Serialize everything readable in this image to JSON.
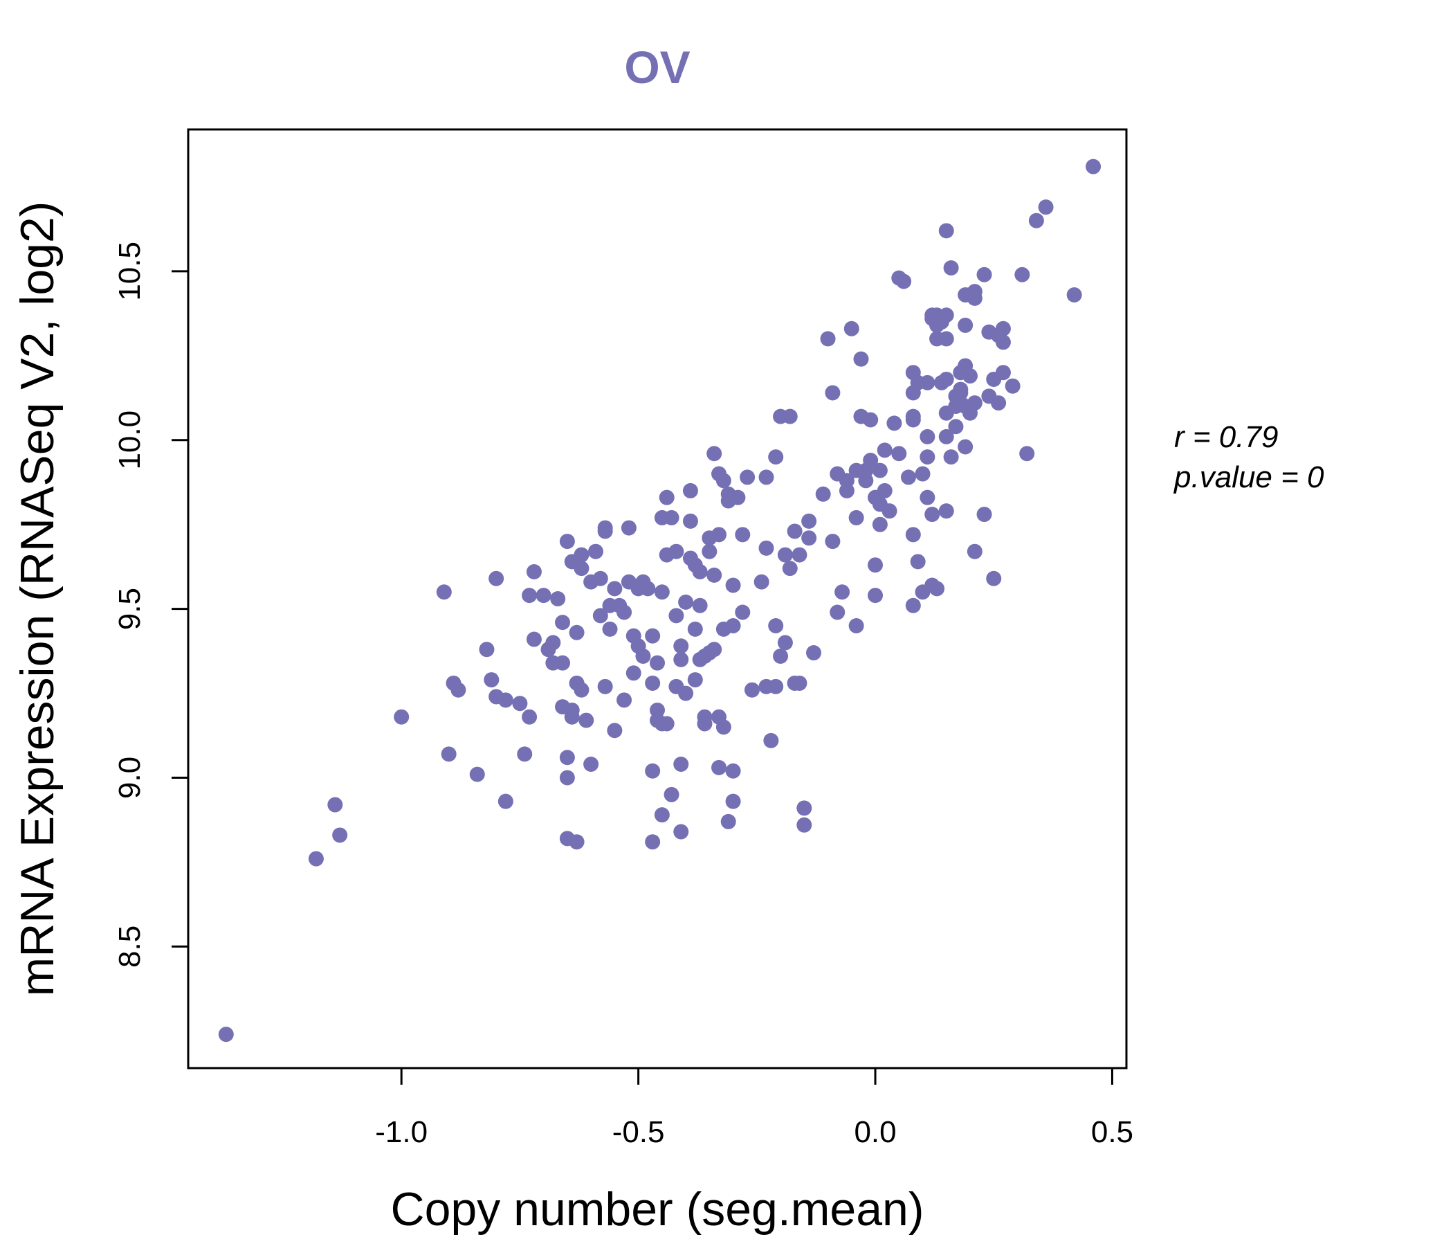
{
  "chart_data": {
    "type": "scatter",
    "title": "OV",
    "xlabel": "Copy number (seg.mean)",
    "ylabel": "mRNA Expression (RNASeq V2, log2)",
    "xlim": [
      -1.45,
      0.53
    ],
    "ylim": [
      8.14,
      10.92
    ],
    "xticks": [
      -1.0,
      -0.5,
      0.0,
      0.5
    ],
    "xtick_labels": [
      "-1.0",
      "-0.5",
      "0.0",
      "0.5"
    ],
    "yticks": [
      8.5,
      9.0,
      9.5,
      10.0,
      10.5
    ],
    "ytick_labels": [
      "8.5",
      "9.0",
      "9.5",
      "10.0",
      "10.5"
    ],
    "annotation": {
      "r_label": "r = 0.79",
      "p_label": "p.value = 0"
    },
    "point_color": "#7570b3",
    "points": [
      [
        -1.37,
        8.24
      ],
      [
        -1.18,
        8.76
      ],
      [
        -1.14,
        8.92
      ],
      [
        -1.13,
        8.83
      ],
      [
        -1.0,
        9.18
      ],
      [
        -0.91,
        9.55
      ],
      [
        -0.9,
        9.07
      ],
      [
        -0.89,
        9.28
      ],
      [
        -0.88,
        9.26
      ],
      [
        -0.84,
        9.01
      ],
      [
        -0.82,
        9.38
      ],
      [
        -0.81,
        9.29
      ],
      [
        -0.8,
        9.24
      ],
      [
        -0.8,
        9.59
      ],
      [
        -0.78,
        8.93
      ],
      [
        -0.78,
        9.23
      ],
      [
        -0.75,
        9.22
      ],
      [
        -0.74,
        9.07
      ],
      [
        -0.73,
        9.54
      ],
      [
        -0.73,
        9.18
      ],
      [
        -0.72,
        9.61
      ],
      [
        -0.72,
        9.41
      ],
      [
        -0.7,
        9.54
      ],
      [
        -0.69,
        9.38
      ],
      [
        -0.68,
        9.34
      ],
      [
        -0.68,
        9.4
      ],
      [
        -0.67,
        9.53
      ],
      [
        -0.66,
        9.46
      ],
      [
        -0.66,
        9.34
      ],
      [
        -0.66,
        9.21
      ],
      [
        -0.65,
        9.06
      ],
      [
        -0.65,
        8.82
      ],
      [
        -0.65,
        9.7
      ],
      [
        -0.65,
        9.0
      ],
      [
        -0.64,
        9.18
      ],
      [
        -0.64,
        9.64
      ],
      [
        -0.64,
        9.2
      ],
      [
        -0.63,
        9.43
      ],
      [
        -0.63,
        8.81
      ],
      [
        -0.63,
        9.28
      ],
      [
        -0.62,
        9.62
      ],
      [
        -0.62,
        9.66
      ],
      [
        -0.62,
        9.26
      ],
      [
        -0.61,
        9.17
      ],
      [
        -0.6,
        9.58
      ],
      [
        -0.6,
        9.04
      ],
      [
        -0.59,
        9.67
      ],
      [
        -0.58,
        9.59
      ],
      [
        -0.58,
        9.48
      ],
      [
        -0.57,
        9.27
      ],
      [
        -0.57,
        9.74
      ],
      [
        -0.57,
        9.73
      ],
      [
        -0.56,
        9.44
      ],
      [
        -0.56,
        9.51
      ],
      [
        -0.55,
        9.56
      ],
      [
        -0.55,
        9.14
      ],
      [
        -0.54,
        9.51
      ],
      [
        -0.53,
        9.23
      ],
      [
        -0.53,
        9.49
      ],
      [
        -0.52,
        9.58
      ],
      [
        -0.52,
        9.74
      ],
      [
        -0.51,
        9.42
      ],
      [
        -0.51,
        9.31
      ],
      [
        -0.5,
        9.39
      ],
      [
        -0.5,
        9.56
      ],
      [
        -0.49,
        9.36
      ],
      [
        -0.49,
        9.58
      ],
      [
        -0.48,
        9.56
      ],
      [
        -0.47,
        9.28
      ],
      [
        -0.47,
        9.42
      ],
      [
        -0.47,
        8.81
      ],
      [
        -0.47,
        9.02
      ],
      [
        -0.46,
        9.2
      ],
      [
        -0.46,
        9.17
      ],
      [
        -0.46,
        9.34
      ],
      [
        -0.45,
        9.55
      ],
      [
        -0.45,
        9.77
      ],
      [
        -0.45,
        9.16
      ],
      [
        -0.45,
        8.89
      ],
      [
        -0.44,
        9.66
      ],
      [
        -0.44,
        9.83
      ],
      [
        -0.44,
        9.16
      ],
      [
        -0.43,
        9.77
      ],
      [
        -0.43,
        8.95
      ],
      [
        -0.42,
        9.27
      ],
      [
        -0.42,
        9.48
      ],
      [
        -0.42,
        9.67
      ],
      [
        -0.41,
        9.04
      ],
      [
        -0.41,
        9.35
      ],
      [
        -0.41,
        9.39
      ],
      [
        -0.41,
        8.84
      ],
      [
        -0.4,
        9.52
      ],
      [
        -0.4,
        9.25
      ],
      [
        -0.39,
        9.65
      ],
      [
        -0.39,
        9.76
      ],
      [
        -0.39,
        9.85
      ],
      [
        -0.38,
        9.63
      ],
      [
        -0.38,
        9.44
      ],
      [
        -0.38,
        9.29
      ],
      [
        -0.37,
        9.61
      ],
      [
        -0.37,
        9.35
      ],
      [
        -0.37,
        9.51
      ],
      [
        -0.36,
        9.18
      ],
      [
        -0.36,
        9.16
      ],
      [
        -0.36,
        9.36
      ],
      [
        -0.35,
        9.37
      ],
      [
        -0.35,
        9.67
      ],
      [
        -0.35,
        9.71
      ],
      [
        -0.34,
        9.96
      ],
      [
        -0.34,
        9.6
      ],
      [
        -0.34,
        9.38
      ],
      [
        -0.33,
        9.72
      ],
      [
        -0.33,
        9.9
      ],
      [
        -0.33,
        9.03
      ],
      [
        -0.33,
        9.18
      ],
      [
        -0.32,
        9.44
      ],
      [
        -0.32,
        9.15
      ],
      [
        -0.32,
        9.88
      ],
      [
        -0.31,
        9.84
      ],
      [
        -0.31,
        9.82
      ],
      [
        -0.31,
        8.87
      ],
      [
        -0.3,
        9.57
      ],
      [
        -0.3,
        9.45
      ],
      [
        -0.3,
        9.02
      ],
      [
        -0.3,
        8.93
      ],
      [
        -0.29,
        9.83
      ],
      [
        -0.28,
        9.72
      ],
      [
        -0.28,
        9.49
      ],
      [
        -0.27,
        9.89
      ],
      [
        -0.26,
        9.26
      ],
      [
        -0.24,
        9.58
      ],
      [
        -0.23,
        9.68
      ],
      [
        -0.23,
        9.89
      ],
      [
        -0.23,
        9.27
      ],
      [
        -0.22,
        9.11
      ],
      [
        -0.21,
        9.27
      ],
      [
        -0.21,
        9.45
      ],
      [
        -0.21,
        9.95
      ],
      [
        -0.2,
        10.07
      ],
      [
        -0.2,
        9.36
      ],
      [
        -0.19,
        9.4
      ],
      [
        -0.19,
        9.66
      ],
      [
        -0.18,
        10.07
      ],
      [
        -0.18,
        9.62
      ],
      [
        -0.17,
        9.28
      ],
      [
        -0.17,
        9.73
      ],
      [
        -0.16,
        9.28
      ],
      [
        -0.16,
        9.66
      ],
      [
        -0.15,
        8.91
      ],
      [
        -0.15,
        8.86
      ],
      [
        -0.14,
        9.71
      ],
      [
        -0.14,
        9.76
      ],
      [
        -0.13,
        9.37
      ],
      [
        -0.11,
        9.84
      ],
      [
        -0.1,
        10.3
      ],
      [
        -0.09,
        10.14
      ],
      [
        -0.09,
        9.7
      ],
      [
        -0.08,
        9.9
      ],
      [
        -0.08,
        9.49
      ],
      [
        -0.07,
        9.55
      ],
      [
        -0.06,
        9.85
      ],
      [
        -0.06,
        9.88
      ],
      [
        -0.05,
        10.33
      ],
      [
        -0.04,
        9.45
      ],
      [
        -0.04,
        9.77
      ],
      [
        -0.04,
        9.91
      ],
      [
        -0.03,
        10.07
      ],
      [
        -0.03,
        10.24
      ],
      [
        -0.02,
        9.91
      ],
      [
        -0.02,
        9.88
      ],
      [
        -0.01,
        10.06
      ],
      [
        -0.01,
        9.94
      ],
      [
        0.0,
        9.63
      ],
      [
        0.0,
        9.54
      ],
      [
        0.0,
        9.83
      ],
      [
        0.01,
        9.91
      ],
      [
        0.01,
        9.81
      ],
      [
        0.01,
        9.75
      ],
      [
        0.02,
        9.97
      ],
      [
        0.02,
        9.85
      ],
      [
        0.03,
        9.79
      ],
      [
        0.04,
        10.05
      ],
      [
        0.05,
        10.48
      ],
      [
        0.05,
        9.96
      ],
      [
        0.06,
        10.47
      ],
      [
        0.07,
        9.89
      ],
      [
        0.08,
        10.07
      ],
      [
        0.08,
        10.06
      ],
      [
        0.08,
        9.51
      ],
      [
        0.08,
        10.14
      ],
      [
        0.08,
        10.2
      ],
      [
        0.08,
        9.72
      ],
      [
        0.09,
        9.64
      ],
      [
        0.09,
        10.17
      ],
      [
        0.1,
        9.55
      ],
      [
        0.1,
        9.9
      ],
      [
        0.11,
        10.01
      ],
      [
        0.11,
        9.95
      ],
      [
        0.11,
        10.17
      ],
      [
        0.11,
        9.83
      ],
      [
        0.12,
        10.37
      ],
      [
        0.12,
        10.36
      ],
      [
        0.12,
        9.57
      ],
      [
        0.12,
        9.78
      ],
      [
        0.13,
        10.34
      ],
      [
        0.13,
        10.3
      ],
      [
        0.13,
        10.37
      ],
      [
        0.13,
        9.56
      ],
      [
        0.14,
        10.17
      ],
      [
        0.14,
        10.35
      ],
      [
        0.15,
        10.62
      ],
      [
        0.15,
        10.37
      ],
      [
        0.15,
        10.08
      ],
      [
        0.15,
        9.79
      ],
      [
        0.15,
        10.01
      ],
      [
        0.15,
        10.3
      ],
      [
        0.15,
        10.18
      ],
      [
        0.16,
        10.51
      ],
      [
        0.16,
        9.95
      ],
      [
        0.17,
        10.1
      ],
      [
        0.17,
        10.13
      ],
      [
        0.17,
        10.04
      ],
      [
        0.18,
        10.15
      ],
      [
        0.18,
        10.14
      ],
      [
        0.18,
        10.11
      ],
      [
        0.18,
        10.2
      ],
      [
        0.19,
        10.22
      ],
      [
        0.19,
        10.43
      ],
      [
        0.19,
        10.34
      ],
      [
        0.19,
        9.98
      ],
      [
        0.19,
        10.1
      ],
      [
        0.2,
        10.08
      ],
      [
        0.2,
        10.43
      ],
      [
        0.2,
        10.19
      ],
      [
        0.21,
        10.44
      ],
      [
        0.21,
        10.42
      ],
      [
        0.21,
        10.11
      ],
      [
        0.21,
        9.67
      ],
      [
        0.23,
        9.78
      ],
      [
        0.23,
        10.49
      ],
      [
        0.24,
        10.13
      ],
      [
        0.24,
        10.32
      ],
      [
        0.25,
        9.59
      ],
      [
        0.25,
        10.18
      ],
      [
        0.26,
        10.31
      ],
      [
        0.26,
        10.11
      ],
      [
        0.27,
        10.33
      ],
      [
        0.27,
        10.2
      ],
      [
        0.27,
        10.29
      ],
      [
        0.29,
        10.16
      ],
      [
        0.31,
        10.49
      ],
      [
        0.32,
        9.96
      ],
      [
        0.34,
        10.65
      ],
      [
        0.36,
        10.69
      ],
      [
        0.42,
        10.43
      ],
      [
        0.46,
        10.81
      ]
    ]
  }
}
